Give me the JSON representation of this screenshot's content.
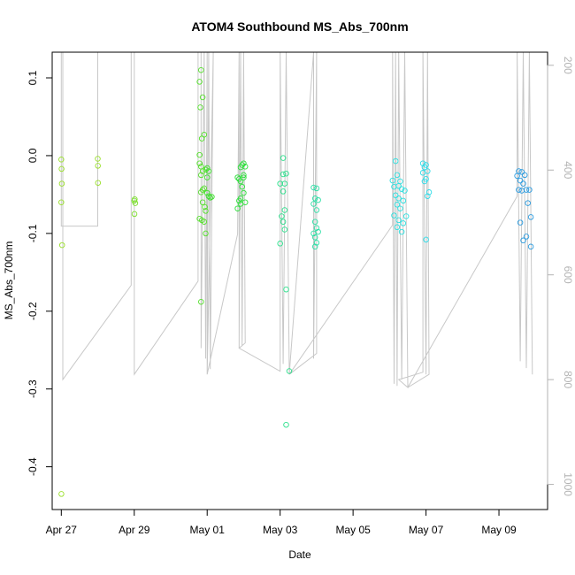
{
  "chart_data": {
    "type": "scatter",
    "title": "ATOM4 Southbound MS_Abs_700nm",
    "xlabel": "Date",
    "ylabel": "MS_Abs_700nm",
    "xlim": [
      "2017-04-26T18:00",
      "2017-05-10T08:00"
    ],
    "ylim": [
      -0.455,
      0.133
    ],
    "x_ticks": [
      {
        "date": "2017-04-27",
        "label": "Apr 27"
      },
      {
        "date": "2017-04-29",
        "label": "Apr 29"
      },
      {
        "date": "2017-05-01",
        "label": "May 01"
      },
      {
        "date": "2017-05-03",
        "label": "May 03"
      },
      {
        "date": "2017-05-05",
        "label": "May 05"
      },
      {
        "date": "2017-05-07",
        "label": "May 07"
      },
      {
        "date": "2017-05-09",
        "label": "May 09"
      }
    ],
    "y_ticks": [
      {
        "value": 0.1,
        "label": "0.1"
      },
      {
        "value": 0.0,
        "label": "0.0"
      },
      {
        "value": -0.1,
        "label": "-0.1"
      },
      {
        "value": -0.2,
        "label": "-0.2"
      },
      {
        "value": -0.3,
        "label": "-0.3"
      },
      {
        "value": -0.4,
        "label": "-0.4"
      }
    ],
    "secondary_axis": {
      "ticks": [
        {
          "value": 200,
          "label": "200"
        },
        {
          "value": 400,
          "label": "400"
        },
        {
          "value": 600,
          "label": "600"
        },
        {
          "value": 800,
          "label": "800"
        },
        {
          "value": 1000,
          "label": "1000"
        }
      ],
      "range": [
        175,
        1048
      ],
      "reversed": true,
      "color": "#b3b3b3"
    },
    "grid": false,
    "legend": "none",
    "line_color": "#c8c8c8",
    "flight_depth_line": [
      [
        "2017-04-27T00:00",
        175
      ],
      [
        "2017-04-27T00:00",
        507
      ],
      [
        "2017-04-28T00:00",
        507
      ],
      [
        "2017-04-28T00:00",
        175
      ],
      [
        "2017-04-27T01:00",
        175
      ],
      [
        "2017-04-27T01:00",
        800
      ],
      [
        "2017-04-28T22:00",
        620
      ],
      [
        "2017-04-28T22:00",
        175
      ],
      [
        "2017-04-29T00:00",
        175
      ],
      [
        "2017-04-29T00:00",
        790
      ],
      [
        "2017-04-30T18:00",
        612
      ],
      [
        "2017-04-30T18:00",
        175
      ],
      [
        "2017-04-30T20:00",
        175
      ],
      [
        "2017-04-30T20:00",
        740
      ],
      [
        "2017-04-30T22:00",
        175
      ],
      [
        "2017-04-30T23:00",
        760
      ],
      [
        "2017-05-01T00:00",
        175
      ],
      [
        "2017-05-01T00:00",
        790
      ],
      [
        "2017-05-01T01:00",
        175
      ],
      [
        "2017-05-01T02:00",
        780
      ],
      [
        "2017-05-01T04:00",
        175
      ],
      [
        "2017-05-01T00:00",
        790
      ],
      [
        "2017-05-01T20:00",
        522
      ],
      [
        "2017-05-01T21:00",
        175
      ],
      [
        "2017-05-01T21:00",
        740
      ],
      [
        "2017-05-01T22:00",
        175
      ],
      [
        "2017-05-01T23:00",
        735
      ],
      [
        "2017-05-02T00:00",
        175
      ],
      [
        "2017-05-02T01:00",
        730
      ],
      [
        "2017-05-01T21:00",
        740
      ],
      [
        "2017-05-03T00:00",
        784
      ],
      [
        "2017-05-03T00:00",
        175
      ],
      [
        "2017-05-03T02:00",
        770
      ],
      [
        "2017-05-03T04:00",
        175
      ],
      [
        "2017-05-03T06:00",
        790
      ],
      [
        "2017-05-03T22:00",
        175
      ],
      [
        "2017-05-03T22:00",
        760
      ],
      [
        "2017-05-04T00:00",
        175
      ],
      [
        "2017-05-04T00:00",
        750
      ],
      [
        "2017-05-03T06:00",
        790
      ],
      [
        "2017-05-06T02:00",
        505
      ],
      [
        "2017-05-06T02:00",
        175
      ],
      [
        "2017-05-06T03:00",
        808
      ],
      [
        "2017-05-06T04:00",
        175
      ],
      [
        "2017-05-06T05:00",
        812
      ],
      [
        "2017-05-06T06:00",
        175
      ],
      [
        "2017-05-06T08:00",
        800
      ],
      [
        "2017-05-06T10:00",
        175
      ],
      [
        "2017-05-06T12:00",
        815
      ],
      [
        "2017-05-06T06:00",
        800
      ],
      [
        "2017-05-06T22:00",
        786
      ],
      [
        "2017-05-06T22:00",
        175
      ],
      [
        "2017-05-07T00:00",
        790
      ],
      [
        "2017-05-07T01:00",
        175
      ],
      [
        "2017-05-07T02:00",
        790
      ],
      [
        "2017-05-06T12:00",
        815
      ],
      [
        "2017-05-09T12:00",
        450
      ],
      [
        "2017-05-09T12:00",
        175
      ],
      [
        "2017-05-09T14:00",
        765
      ],
      [
        "2017-05-09T16:00",
        175
      ],
      [
        "2017-05-09T18:00",
        778
      ],
      [
        "2017-05-09T20:00",
        175
      ],
      [
        "2017-05-09T22:00",
        790
      ]
    ],
    "series": [
      {
        "color": "#9be02c",
        "points": [
          [
            "2017-04-27T00:00",
            -0.005
          ],
          [
            "2017-04-27T00:10",
            -0.017
          ],
          [
            "2017-04-27T00:20",
            -0.036
          ],
          [
            "2017-04-27T00:00",
            -0.06
          ],
          [
            "2017-04-27T00:30",
            -0.115
          ],
          [
            "2017-04-27T00:05",
            -0.435
          ],
          [
            "2017-04-28T00:00",
            -0.004
          ],
          [
            "2017-04-28T00:05",
            -0.013
          ],
          [
            "2017-04-28T00:10",
            -0.035
          ]
        ]
      },
      {
        "color": "#7ce02c",
        "points": [
          [
            "2017-04-29T00:00",
            -0.058
          ],
          [
            "2017-04-29T00:20",
            -0.056
          ],
          [
            "2017-04-29T00:40",
            -0.061
          ],
          [
            "2017-04-29T00:10",
            -0.075
          ]
        ]
      },
      {
        "color": "#55e02c",
        "points": [
          [
            "2017-04-30T19:00",
            0.095
          ],
          [
            "2017-04-30T20:00",
            0.11
          ],
          [
            "2017-04-30T21:00",
            0.075
          ],
          [
            "2017-04-30T19:30",
            0.062
          ],
          [
            "2017-04-30T22:00",
            0.027
          ],
          [
            "2017-04-30T20:30",
            0.022
          ],
          [
            "2017-04-30T19:00",
            0.001
          ],
          [
            "2017-04-30T19:00",
            -0.01
          ],
          [
            "2017-04-30T20:00",
            -0.014
          ],
          [
            "2017-04-30T21:00",
            -0.02
          ],
          [
            "2017-04-30T23:00",
            -0.018
          ],
          [
            "2017-04-30T20:00",
            -0.025
          ],
          [
            "2017-04-30T21:00",
            -0.044
          ],
          [
            "2017-04-30T22:00",
            -0.042
          ],
          [
            "2017-04-30T20:00",
            -0.047
          ],
          [
            "2017-04-30T21:00",
            -0.06
          ],
          [
            "2017-04-30T22:30",
            -0.066
          ],
          [
            "2017-04-30T23:00",
            -0.071
          ],
          [
            "2017-04-30T19:00",
            -0.081
          ],
          [
            "2017-04-30T20:30",
            -0.083
          ],
          [
            "2017-04-30T22:00",
            -0.085
          ],
          [
            "2017-04-30T23:00",
            -0.1
          ],
          [
            "2017-04-30T20:00",
            -0.188
          ]
        ]
      },
      {
        "color": "#3ce02c",
        "points": [
          [
            "2017-05-01T00:00",
            -0.016
          ],
          [
            "2017-05-01T01:00",
            -0.02
          ],
          [
            "2017-05-01T00:00",
            -0.028
          ],
          [
            "2017-05-01T00:00",
            -0.048
          ],
          [
            "2017-05-01T01:00",
            -0.052
          ],
          [
            "2017-05-01T02:00",
            -0.054
          ],
          [
            "2017-05-01T03:00",
            -0.053
          ]
        ]
      },
      {
        "color": "#2ce03a",
        "points": [
          [
            "2017-05-01T20:00",
            -0.028
          ],
          [
            "2017-05-01T21:00",
            -0.03
          ],
          [
            "2017-05-01T22:00",
            -0.015
          ],
          [
            "2017-05-01T23:00",
            -0.012
          ],
          [
            "2017-05-02T00:00",
            -0.01
          ],
          [
            "2017-05-02T01:00",
            -0.014
          ],
          [
            "2017-05-02T00:00",
            -0.025
          ],
          [
            "2017-05-01T22:00",
            -0.033
          ],
          [
            "2017-05-02T00:00",
            -0.028
          ],
          [
            "2017-05-01T23:00",
            -0.04
          ],
          [
            "2017-05-02T00:00",
            -0.048
          ],
          [
            "2017-05-01T22:00",
            -0.055
          ],
          [
            "2017-05-01T21:00",
            -0.058
          ],
          [
            "2017-05-02T01:00",
            -0.06
          ],
          [
            "2017-05-01T20:00",
            -0.068
          ],
          [
            "2017-05-01T22:00",
            -0.062
          ]
        ]
      },
      {
        "color": "#2ce08c",
        "points": [
          [
            "2017-05-03T02:00",
            -0.003
          ],
          [
            "2017-05-03T02:00",
            -0.024
          ],
          [
            "2017-05-03T04:00",
            -0.023
          ],
          [
            "2017-05-03T00:00",
            -0.036
          ],
          [
            "2017-05-03T03:00",
            -0.036
          ],
          [
            "2017-05-03T02:00",
            -0.046
          ],
          [
            "2017-05-03T03:00",
            -0.07
          ],
          [
            "2017-05-03T01:00",
            -0.078
          ],
          [
            "2017-05-03T02:00",
            -0.085
          ],
          [
            "2017-05-03T03:00",
            -0.095
          ],
          [
            "2017-05-03T00:00",
            -0.113
          ],
          [
            "2017-05-03T04:00",
            -0.172
          ],
          [
            "2017-05-03T06:00",
            -0.277
          ],
          [
            "2017-05-03T04:00",
            -0.346
          ]
        ]
      },
      {
        "color": "#2ce0a6",
        "points": [
          [
            "2017-05-03T22:00",
            -0.041
          ],
          [
            "2017-05-04T00:00",
            -0.042
          ],
          [
            "2017-05-03T23:00",
            -0.055
          ],
          [
            "2017-05-04T01:00",
            -0.057
          ],
          [
            "2017-05-03T22:00",
            -0.062
          ],
          [
            "2017-05-04T00:00",
            -0.07
          ],
          [
            "2017-05-03T23:00",
            -0.085
          ],
          [
            "2017-05-04T00:00",
            -0.093
          ],
          [
            "2017-05-03T22:00",
            -0.1
          ],
          [
            "2017-05-04T01:00",
            -0.098
          ],
          [
            "2017-05-03T23:00",
            -0.105
          ],
          [
            "2017-05-04T00:00",
            -0.112
          ],
          [
            "2017-05-03T23:00",
            -0.117
          ]
        ]
      },
      {
        "color": "#2ce0e0",
        "points": [
          [
            "2017-05-06T04:00",
            -0.007
          ],
          [
            "2017-05-06T02:00",
            -0.032
          ],
          [
            "2017-05-06T05:00",
            -0.025
          ],
          [
            "2017-05-06T07:00",
            -0.033
          ],
          [
            "2017-05-06T03:00",
            -0.04
          ],
          [
            "2017-05-06T06:00",
            -0.039
          ],
          [
            "2017-05-06T08:00",
            -0.043
          ],
          [
            "2017-05-06T10:00",
            -0.045
          ],
          [
            "2017-05-06T04:00",
            -0.051
          ],
          [
            "2017-05-06T06:00",
            -0.055
          ],
          [
            "2017-05-06T09:00",
            -0.058
          ],
          [
            "2017-05-06T05:00",
            -0.063
          ],
          [
            "2017-05-06T07:00",
            -0.068
          ],
          [
            "2017-05-06T03:00",
            -0.077
          ],
          [
            "2017-05-06T11:00",
            -0.078
          ],
          [
            "2017-05-06T06:00",
            -0.083
          ],
          [
            "2017-05-06T09:00",
            -0.087
          ],
          [
            "2017-05-06T05:00",
            -0.092
          ],
          [
            "2017-05-06T08:00",
            -0.098
          ]
        ]
      },
      {
        "color": "#2cdce8",
        "points": [
          [
            "2017-05-06T22:00",
            -0.01
          ],
          [
            "2017-05-06T23:00",
            -0.015
          ],
          [
            "2017-05-07T00:00",
            -0.012
          ],
          [
            "2017-05-06T22:00",
            -0.022
          ],
          [
            "2017-05-07T01:00",
            -0.02
          ],
          [
            "2017-05-06T23:00",
            -0.033
          ],
          [
            "2017-05-07T00:00",
            -0.03
          ],
          [
            "2017-05-07T02:00",
            -0.047
          ],
          [
            "2017-05-07T01:00",
            -0.052
          ],
          [
            "2017-05-07T00:00",
            -0.108
          ]
        ]
      },
      {
        "color": "#2c9ce0",
        "points": [
          [
            "2017-05-09T13:00",
            -0.02
          ],
          [
            "2017-05-09T15:00",
            -0.021
          ],
          [
            "2017-05-09T12:00",
            -0.026
          ],
          [
            "2017-05-09T17:00",
            -0.025
          ],
          [
            "2017-05-09T14:00",
            -0.032
          ],
          [
            "2017-05-09T16:00",
            -0.036
          ],
          [
            "2017-05-09T13:00",
            -0.044
          ],
          [
            "2017-05-09T15:00",
            -0.045
          ],
          [
            "2017-05-09T18:00",
            -0.044
          ],
          [
            "2017-05-09T20:00",
            -0.044
          ],
          [
            "2017-05-09T19:00",
            -0.061
          ],
          [
            "2017-05-09T21:00",
            -0.079
          ],
          [
            "2017-05-09T14:00",
            -0.086
          ],
          [
            "2017-05-09T18:00",
            -0.104
          ],
          [
            "2017-05-09T16:00",
            -0.109
          ],
          [
            "2017-05-09T21:00",
            -0.117
          ]
        ]
      }
    ]
  }
}
